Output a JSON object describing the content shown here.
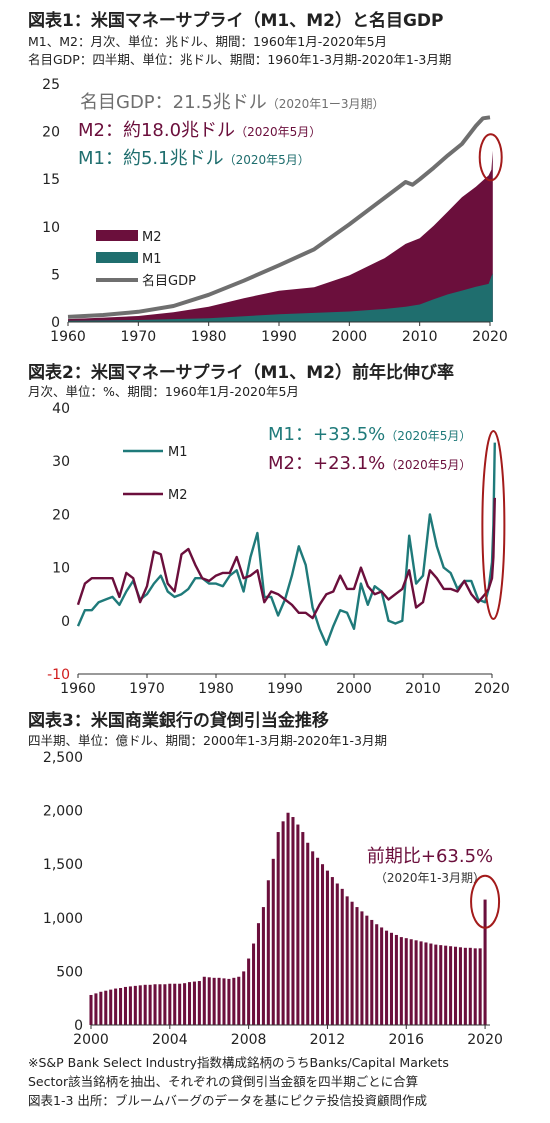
{
  "chart_data": [
    {
      "type": "area",
      "title": "図表1：米国マネーサプライ（M1、M2）と名目GDP",
      "subtitles": [
        "M1、M2：月次、単位：兆ドル、期間：1960年1月-2020年5月",
        "名目GDP：四半期、単位：兆ドル、期間：1960年1-3月期-2020年1-3月期"
      ],
      "xlim": [
        1960,
        2020
      ],
      "ylim": [
        0,
        25
      ],
      "x_ticks": [
        "1960",
        "1970",
        "1980",
        "1990",
        "2000",
        "2010",
        "2020"
      ],
      "y_ticks": [
        "0",
        "5",
        "10",
        "15",
        "20",
        "25"
      ],
      "legend_placement": "left-middle",
      "legend": [
        {
          "label": "M2",
          "color": "#6b0f3c"
        },
        {
          "label": "M1",
          "color": "#1f6e6e"
        },
        {
          "label": "名目GDP",
          "color": "#6f6f6f"
        }
      ],
      "annotations": [
        {
          "main": "名目GDP：21.5兆ドル",
          "sub": "（2020年1ー3月期）",
          "color": "#6f6f6f"
        },
        {
          "main": "M2：約18.0兆ドル",
          "sub": "（2020年5月）",
          "color": "#6b0f3c"
        },
        {
          "main": "M1：約5.1兆ドル",
          "sub": "（2020年5月）",
          "color": "#1f6e6e"
        }
      ],
      "series": [
        {
          "name": "M2",
          "color": "#6b0f3c",
          "x": [
            1960,
            1965,
            1970,
            1975,
            1980,
            1985,
            1990,
            1995,
            2000,
            2005,
            2008,
            2010,
            2012,
            2014,
            2016,
            2018,
            2019.8,
            2020.2,
            2020.4
          ],
          "values": [
            0.3,
            0.46,
            0.63,
            1.02,
            1.6,
            2.5,
            3.28,
            3.65,
            4.9,
            6.7,
            8.2,
            8.8,
            10.1,
            11.6,
            13.1,
            14.2,
            15.4,
            16.0,
            18.0
          ]
        },
        {
          "name": "M1",
          "color": "#1f6e6e",
          "x": [
            1960,
            1970,
            1980,
            1990,
            2000,
            2005,
            2008,
            2010,
            2012,
            2014,
            2016,
            2018,
            2019.8,
            2020.2,
            2020.4
          ],
          "values": [
            0.14,
            0.21,
            0.4,
            0.82,
            1.1,
            1.37,
            1.6,
            1.84,
            2.4,
            2.9,
            3.3,
            3.7,
            4.0,
            4.8,
            5.1
          ]
        },
        {
          "name": "名目GDP",
          "color": "#6f6f6f",
          "x": [
            1960,
            1965,
            1970,
            1975,
            1980,
            1985,
            1990,
            1995,
            2000,
            2005,
            2008,
            2009,
            2010,
            2012,
            2014,
            2016,
            2018,
            2019,
            2020
          ],
          "values": [
            0.54,
            0.74,
            1.07,
            1.68,
            2.86,
            4.34,
            5.96,
            7.64,
            10.25,
            13.04,
            14.71,
            14.42,
            14.99,
            16.2,
            17.5,
            18.7,
            20.6,
            21.4,
            21.5
          ]
        }
      ]
    },
    {
      "type": "line",
      "title": "図表2：米国マネーサプライ（M1、M2）前年比伸び率",
      "subtitles": [
        "月次、単位：%、期間：1960年1月-2020年5月"
      ],
      "xlim": [
        1960,
        2020
      ],
      "ylim": [
        -10,
        40
      ],
      "x_ticks": [
        "1960",
        "1970",
        "1980",
        "1990",
        "2000",
        "2010",
        "2020"
      ],
      "y_ticks": [
        "-10",
        "0",
        "10",
        "20",
        "30",
        "40"
      ],
      "legend_placement": "top-left",
      "legend": [
        {
          "label": "M1",
          "color": "#1f7a7a"
        },
        {
          "label": "M2",
          "color": "#6b0f3c"
        }
      ],
      "annotations": [
        {
          "main": "M1：+33.5%",
          "sub": "（2020年5月）",
          "color": "#1f7a7a"
        },
        {
          "main": "M2：+23.1%",
          "sub": "（2020年5月）",
          "color": "#6b0f3c"
        }
      ],
      "series": [
        {
          "name": "M1",
          "color": "#1f7a7a",
          "x": [
            1960,
            1961,
            1962,
            1963,
            1964,
            1965,
            1966,
            1967,
            1968,
            1969,
            1970,
            1971,
            1972,
            1973,
            1974,
            1975,
            1976,
            1977,
            1978,
            1979,
            1980,
            1981,
            1982,
            1983,
            1984,
            1985,
            1986,
            1987,
            1988,
            1989,
            1990,
            1991,
            1992,
            1993,
            1994,
            1995,
            1996,
            1997,
            1998,
            1999,
            2000,
            2001,
            2002,
            2003,
            2004,
            2005,
            2006,
            2007,
            2008,
            2009,
            2010,
            2011,
            2012,
            2013,
            2014,
            2015,
            2016,
            2017,
            2018,
            2019,
            2019.5,
            2020,
            2020.2,
            2020.4
          ],
          "values": [
            -1,
            2,
            2,
            3.5,
            4,
            4.5,
            3,
            5.5,
            7.5,
            4,
            5,
            7,
            8.5,
            5.5,
            4.5,
            5,
            6,
            8,
            8,
            7,
            7,
            6.5,
            8.5,
            9.5,
            5.5,
            12,
            16.5,
            4.5,
            4.5,
            1,
            4,
            8.5,
            14,
            10.5,
            2.5,
            -1.5,
            -4.5,
            -1,
            2,
            1.5,
            -1.5,
            7,
            3,
            6.5,
            5.5,
            0,
            -0.5,
            0,
            16,
            7,
            8.5,
            20,
            14,
            10,
            9,
            6,
            7.5,
            7.5,
            4,
            3.5,
            6,
            11,
            18,
            33.5
          ]
        },
        {
          "name": "M2",
          "color": "#6b0f3c",
          "x": [
            1960,
            1961,
            1962,
            1963,
            1964,
            1965,
            1966,
            1967,
            1968,
            1969,
            1970,
            1971,
            1972,
            1973,
            1974,
            1975,
            1976,
            1977,
            1978,
            1979,
            1980,
            1981,
            1982,
            1983,
            1984,
            1985,
            1986,
            1987,
            1988,
            1989,
            1990,
            1991,
            1992,
            1993,
            1994,
            1995,
            1996,
            1997,
            1998,
            1999,
            2000,
            2001,
            2002,
            2003,
            2004,
            2005,
            2006,
            2007,
            2008,
            2009,
            2010,
            2011,
            2012,
            2013,
            2014,
            2015,
            2016,
            2017,
            2018,
            2019,
            2019.5,
            2020,
            2020.2,
            2020.4
          ],
          "values": [
            3,
            7,
            8,
            8,
            8,
            8,
            4.5,
            9,
            8,
            3.5,
            6.5,
            13,
            12.5,
            7,
            5.5,
            12.5,
            13.5,
            10.5,
            8,
            7.5,
            8.5,
            9,
            9,
            12,
            8,
            8.5,
            9.5,
            3.5,
            5.5,
            5,
            4,
            3,
            1.5,
            1.5,
            0.5,
            3,
            5,
            5.5,
            8.5,
            6,
            6,
            10,
            6.5,
            5,
            5.5,
            4,
            5,
            6,
            9.5,
            2.5,
            3.5,
            9.5,
            8,
            6,
            6,
            5.5,
            7.5,
            5,
            3.5,
            5,
            6,
            8,
            12,
            23.1
          ]
        }
      ]
    },
    {
      "type": "bar",
      "title": "図表3：米国商業銀行の貸倒引当金推移",
      "subtitles": [
        "四半期、単位：億ドル、期間：2000年1-3月期-2020年1-3月期"
      ],
      "xlim": [
        2000,
        2020.25
      ],
      "ylim": [
        0,
        2500
      ],
      "x_ticks": [
        "2000",
        "2004",
        "2008",
        "2012",
        "2016",
        "2020"
      ],
      "y_ticks": [
        "0",
        "500",
        "1,000",
        "1,500",
        "2,000",
        "2,500"
      ],
      "color": "#6b0f3c",
      "annotations": [
        {
          "main": "前期比+63.5%",
          "sub": "（2020年1-3月期）",
          "color": "#6b0f3c"
        }
      ],
      "x": [
        2000,
        2000.25,
        2000.5,
        2000.75,
        2001,
        2001.25,
        2001.5,
        2001.75,
        2002,
        2002.25,
        2002.5,
        2002.75,
        2003,
        2003.25,
        2003.5,
        2003.75,
        2004,
        2004.25,
        2004.5,
        2004.75,
        2005,
        2005.25,
        2005.5,
        2005.75,
        2006,
        2006.25,
        2006.5,
        2006.75,
        2007,
        2007.25,
        2007.5,
        2007.75,
        2008,
        2008.25,
        2008.5,
        2008.75,
        2009,
        2009.25,
        2009.5,
        2009.75,
        2010,
        2010.25,
        2010.5,
        2010.75,
        2011,
        2011.25,
        2011.5,
        2011.75,
        2012,
        2012.25,
        2012.5,
        2012.75,
        2013,
        2013.25,
        2013.5,
        2013.75,
        2014,
        2014.25,
        2014.5,
        2014.75,
        2015,
        2015.25,
        2015.5,
        2015.75,
        2016,
        2016.25,
        2016.5,
        2016.75,
        2017,
        2017.25,
        2017.5,
        2017.75,
        2018,
        2018.25,
        2018.5,
        2018.75,
        2019,
        2019.25,
        2019.5,
        2019.75,
        2020
      ],
      "values": [
        280,
        295,
        310,
        320,
        330,
        340,
        345,
        355,
        360,
        365,
        370,
        375,
        375,
        380,
        380,
        380,
        385,
        385,
        385,
        390,
        400,
        405,
        410,
        450,
        445,
        440,
        440,
        435,
        430,
        440,
        450,
        500,
        620,
        760,
        950,
        1100,
        1350,
        1550,
        1800,
        1900,
        1980,
        1940,
        1870,
        1800,
        1700,
        1620,
        1560,
        1500,
        1440,
        1380,
        1320,
        1270,
        1200,
        1150,
        1100,
        1060,
        1020,
        980,
        940,
        910,
        880,
        860,
        840,
        820,
        810,
        800,
        790,
        780,
        770,
        760,
        750,
        745,
        740,
        735,
        730,
        725,
        720,
        720,
        715,
        715,
        1170
      ]
    }
  ],
  "footnotes": [
    "※S&P Bank Select Industry指数構成銘柄のうちBanks/Capital Markets",
    "Sector該当銘柄を抽出、それぞれの貸倒引当金額を四半期ごとに合算",
    "図表1-3 出所：ブルームバーグのデータを基にピクテ投信投資顧問作成"
  ]
}
